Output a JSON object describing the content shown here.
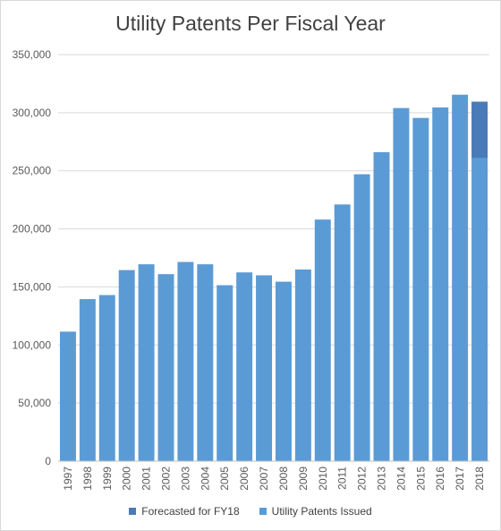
{
  "chart_data": {
    "type": "bar",
    "title": "Utility Patents Per Fiscal Year",
    "xlabel": "",
    "ylabel": "",
    "ylim": [
      0,
      350000
    ],
    "yticks": [
      "0",
      "50,000",
      "100,000",
      "150,000",
      "200,000",
      "250,000",
      "300,000",
      "350,000"
    ],
    "categories": [
      "1997",
      "1998",
      "1999",
      "2000",
      "2001",
      "2002",
      "2003",
      "2004",
      "2005",
      "2006",
      "2007",
      "2008",
      "2009",
      "2010",
      "2011",
      "2012",
      "2013",
      "2014",
      "2015",
      "2016",
      "2017",
      "2018"
    ],
    "series": [
      {
        "name": "Utility Patents Issued",
        "color": "#5b9bd5",
        "values": [
          111500,
          139500,
          143000,
          164500,
          169500,
          161000,
          171500,
          169500,
          151500,
          162500,
          160000,
          154500,
          165000,
          208000,
          221000,
          247000,
          266000,
          304000,
          295500,
          304500,
          315500,
          261000
        ]
      },
      {
        "name": "Forecasted for FY18",
        "color": "#4a7ab8",
        "values": [
          0,
          0,
          0,
          0,
          0,
          0,
          0,
          0,
          0,
          0,
          0,
          0,
          0,
          0,
          0,
          0,
          0,
          0,
          0,
          0,
          0,
          48500
        ]
      }
    ],
    "stacked": true,
    "grid": true,
    "legend_position": "bottom",
    "legend_order": [
      "Forecasted for FY18",
      "Utility Patents Issued"
    ]
  }
}
